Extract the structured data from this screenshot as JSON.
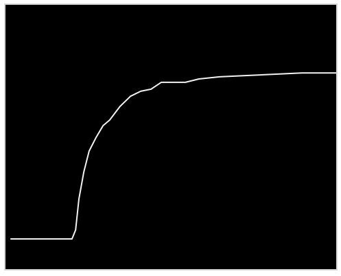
{
  "chart_data": {
    "type": "line",
    "x": [
      1.5,
      10.8,
      20.1,
      21.2,
      22.2,
      23.7,
      25.3,
      27.4,
      29.5,
      31.5,
      34.6,
      37.8,
      40.9,
      44.0,
      47.1,
      50.2,
      54.4,
      58.5,
      64.7,
      73.0,
      81.3,
      89.6,
      100
    ],
    "values": [
      11,
      11,
      11,
      14.4,
      26.2,
      36.6,
      44.5,
      49.7,
      54.2,
      56.3,
      61.5,
      65.4,
      67.3,
      68.1,
      70.7,
      70.7,
      70.7,
      72.0,
      72.8,
      73.3,
      73.8,
      74.3,
      74.3
    ],
    "color": "#f2f2f2",
    "background": "#000000",
    "xlim": [
      0,
      100
    ],
    "ylim": [
      0,
      100
    ]
  }
}
